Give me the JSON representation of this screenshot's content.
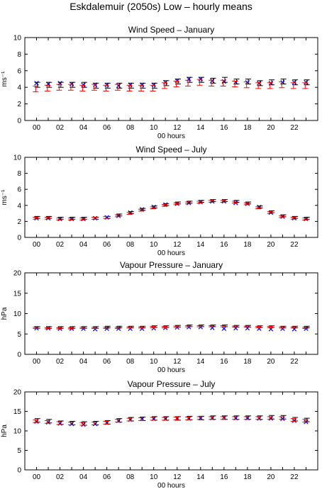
{
  "title": "Eskdalemuir (2050s) Low – hourly means",
  "chart_data": [
    {
      "type": "scatter",
      "title": "Wind Speed – January",
      "xlabel": "00 hours",
      "ylabel": "ms⁻¹",
      "xlim": [
        -1,
        24
      ],
      "ylim": [
        0,
        10
      ],
      "yticks": [
        0,
        2,
        4,
        6,
        8,
        10
      ],
      "xticks": [
        "00",
        "02",
        "04",
        "06",
        "08",
        "10",
        "12",
        "14",
        "16",
        "18",
        "20",
        "22"
      ],
      "grid": false,
      "x": [
        0,
        1,
        2,
        3,
        4,
        5,
        6,
        7,
        8,
        9,
        10,
        11,
        12,
        13,
        14,
        15,
        16,
        17,
        18,
        19,
        20,
        21,
        22,
        23
      ],
      "series": [
        {
          "marker": "x",
          "color": "#0000ff",
          "values": [
            4.5,
            4.4,
            4.5,
            4.4,
            4.3,
            4.3,
            4.3,
            4.2,
            4.3,
            4.3,
            4.3,
            4.6,
            4.8,
            5.0,
            5.0,
            4.8,
            4.7,
            4.6,
            4.6,
            4.5,
            4.5,
            4.6,
            4.6,
            4.6
          ]
        },
        {
          "marker": "errorbar",
          "color": "#000000",
          "values": [
            4.3,
            4.3,
            4.3,
            4.3,
            4.3,
            4.2,
            4.2,
            4.2,
            4.2,
            4.2,
            4.2,
            4.5,
            4.7,
            4.9,
            4.9,
            4.8,
            4.9,
            4.7,
            4.7,
            4.5,
            4.6,
            4.7,
            4.6,
            4.6
          ],
          "error": 0.3
        },
        {
          "marker": "errorbar",
          "color": "#ff0000",
          "values": [
            3.8,
            3.9,
            4.0,
            4.0,
            3.9,
            4.0,
            3.9,
            4.0,
            3.9,
            3.9,
            3.9,
            4.2,
            4.4,
            4.5,
            4.6,
            4.5,
            4.5,
            4.4,
            4.3,
            4.2,
            4.2,
            4.3,
            4.2,
            4.2
          ],
          "error": 0.35
        }
      ]
    },
    {
      "type": "scatter",
      "title": "Wind Speed – July",
      "xlabel": "00 hours",
      "ylabel": "ms⁻¹",
      "xlim": [
        -1,
        24
      ],
      "ylim": [
        0,
        10
      ],
      "yticks": [
        0,
        2,
        4,
        6,
        8,
        10
      ],
      "xticks": [
        "00",
        "02",
        "04",
        "06",
        "08",
        "10",
        "12",
        "14",
        "16",
        "18",
        "20",
        "22"
      ],
      "grid": false,
      "x": [
        0,
        1,
        2,
        3,
        4,
        5,
        6,
        7,
        8,
        9,
        10,
        11,
        12,
        13,
        14,
        15,
        16,
        17,
        18,
        19,
        20,
        21,
        22,
        23
      ],
      "series": [
        {
          "marker": "x",
          "color": "#0000ff",
          "values": [
            2.4,
            2.4,
            2.3,
            2.3,
            2.3,
            2.4,
            2.5,
            2.7,
            3.1,
            3.5,
            3.8,
            4.1,
            4.2,
            4.3,
            4.4,
            4.5,
            4.5,
            4.3,
            4.2,
            3.8,
            3.1,
            2.6,
            2.4,
            2.3
          ]
        },
        {
          "marker": "errorbar",
          "color": "#000000",
          "values": [
            2.5,
            2.5,
            2.4,
            2.4,
            2.4,
            2.4,
            2.5,
            2.8,
            3.1,
            3.5,
            3.8,
            4.1,
            4.3,
            4.4,
            4.5,
            4.6,
            4.6,
            4.5,
            4.3,
            3.8,
            3.2,
            2.7,
            2.5,
            2.4
          ],
          "error": 0.12
        },
        {
          "marker": "errorbar",
          "color": "#ff0000",
          "values": [
            2.4,
            2.4,
            2.3,
            2.3,
            2.3,
            2.4,
            2.5,
            2.7,
            3.0,
            3.4,
            3.7,
            4.0,
            4.2,
            4.3,
            4.4,
            4.5,
            4.5,
            4.4,
            4.2,
            3.7,
            3.1,
            2.6,
            2.4,
            2.3
          ],
          "error": 0.12
        }
      ]
    },
    {
      "type": "scatter",
      "title": "Vapour Pressure – January",
      "xlabel": "00 hours",
      "ylabel": "hPa",
      "xlim": [
        -1,
        24
      ],
      "ylim": [
        0,
        20
      ],
      "yticks": [
        0,
        5,
        10,
        15,
        20
      ],
      "xticks": [
        "00",
        "02",
        "04",
        "06",
        "08",
        "10",
        "12",
        "14",
        "16",
        "18",
        "20",
        "22"
      ],
      "grid": false,
      "x": [
        0,
        1,
        2,
        3,
        4,
        5,
        6,
        7,
        8,
        9,
        10,
        11,
        12,
        13,
        14,
        15,
        16,
        17,
        18,
        19,
        20,
        21,
        22,
        23
      ],
      "series": [
        {
          "marker": "x",
          "color": "#0000ff",
          "values": [
            6.4,
            6.4,
            6.3,
            6.3,
            6.3,
            6.2,
            6.3,
            6.3,
            6.3,
            6.3,
            6.4,
            6.5,
            6.6,
            6.7,
            6.7,
            6.5,
            6.3,
            6.4,
            6.4,
            6.3,
            6.2,
            6.3,
            6.2,
            6.3
          ]
        },
        {
          "marker": "errorbar",
          "color": "#000000",
          "values": [
            6.6,
            6.6,
            6.6,
            6.6,
            6.6,
            6.6,
            6.7,
            6.7,
            6.7,
            6.7,
            6.8,
            6.8,
            6.9,
            7.0,
            7.0,
            7.0,
            7.0,
            6.9,
            6.9,
            6.8,
            6.8,
            6.7,
            6.7,
            6.7
          ],
          "error": 0.2
        },
        {
          "marker": "errorbar",
          "color": "#ff0000",
          "values": [
            6.5,
            6.4,
            6.4,
            6.4,
            6.5,
            6.5,
            6.5,
            6.5,
            6.6,
            6.6,
            6.7,
            6.7,
            6.8,
            6.9,
            6.9,
            6.9,
            6.9,
            6.8,
            6.8,
            6.7,
            6.7,
            6.6,
            6.6,
            6.5
          ],
          "error": 0.15
        }
      ]
    },
    {
      "type": "scatter",
      "title": "Vapour Pressure – July",
      "xlabel": "00 hours",
      "ylabel": "hPa",
      "xlim": [
        -1,
        24
      ],
      "ylim": [
        0,
        20
      ],
      "yticks": [
        0,
        5,
        10,
        15,
        20
      ],
      "xticks": [
        "00",
        "02",
        "04",
        "06",
        "08",
        "10",
        "12",
        "14",
        "16",
        "18",
        "20",
        "22"
      ],
      "grid": false,
      "x": [
        0,
        1,
        2,
        3,
        4,
        5,
        6,
        7,
        8,
        9,
        10,
        11,
        12,
        13,
        14,
        15,
        16,
        17,
        18,
        19,
        20,
        21,
        22,
        23
      ],
      "series": [
        {
          "marker": "x",
          "color": "#0000ff",
          "values": [
            12.4,
            12.2,
            11.9,
            11.8,
            11.6,
            11.8,
            12.1,
            12.6,
            12.9,
            13.1,
            13.1,
            13.1,
            13.2,
            13.2,
            13.3,
            13.3,
            13.4,
            13.3,
            13.3,
            13.2,
            13.2,
            13.1,
            12.6,
            12.3
          ]
        },
        {
          "marker": "errorbar",
          "color": "#000000",
          "values": [
            12.7,
            12.5,
            12.1,
            12.0,
            11.9,
            12.0,
            12.2,
            12.7,
            13.0,
            13.1,
            13.2,
            13.2,
            13.2,
            13.3,
            13.3,
            13.4,
            13.4,
            13.4,
            13.4,
            13.4,
            13.5,
            13.5,
            13.0,
            12.8
          ],
          "error": 0.45
        },
        {
          "marker": "errorbar",
          "color": "#ff0000",
          "values": [
            12.5,
            12.3,
            12.0,
            11.9,
            11.8,
            11.9,
            12.1,
            12.6,
            12.9,
            13.0,
            13.1,
            13.1,
            13.2,
            13.2,
            13.3,
            13.3,
            13.3,
            13.3,
            13.3,
            13.3,
            13.3,
            13.3,
            12.8,
            12.6
          ],
          "error": 0.35
        }
      ]
    }
  ]
}
